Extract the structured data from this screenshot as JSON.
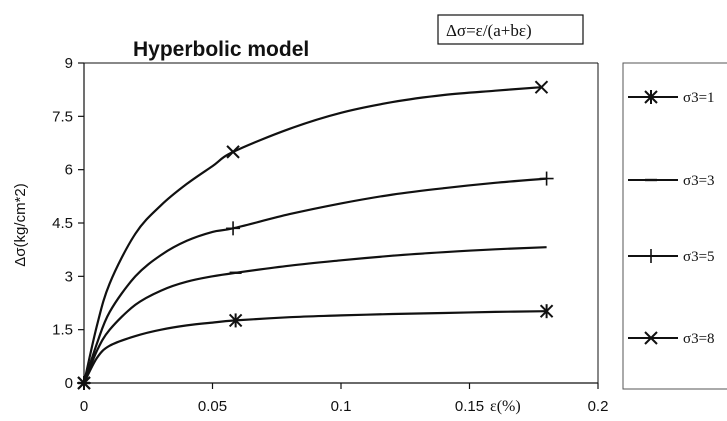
{
  "chart_data": {
    "type": "line",
    "title": "Hyperbolic model",
    "formula": "Δσ=ε/(a+bε)",
    "xlabel": "ε(%)",
    "ylabel": "Δσ(kg/cm*2)",
    "xlim": [
      0,
      0.2
    ],
    "ylim": [
      0,
      9
    ],
    "xticks": [
      "0",
      "0.05",
      "0.1",
      "0.15",
      "0.2"
    ],
    "yticks": [
      "0",
      "1.5",
      "3",
      "4.5",
      "6",
      "7.5",
      "9"
    ],
    "grid": false,
    "legend_position": "right",
    "series": [
      {
        "name": "σ3=1",
        "marker": "asterisk",
        "x": [
          0,
          0.005,
          0.01,
          0.02,
          0.03,
          0.04,
          0.05,
          0.059,
          0.08,
          0.1,
          0.12,
          0.14,
          0.16,
          0.18
        ],
        "y": [
          0,
          0.7,
          1.05,
          1.32,
          1.5,
          1.62,
          1.7,
          1.76,
          1.85,
          1.9,
          1.94,
          1.97,
          2.0,
          2.02
        ],
        "markers_at": [
          [
            0,
            0
          ],
          [
            0.059,
            1.76
          ],
          [
            0.18,
            2.02
          ]
        ]
      },
      {
        "name": "σ3=3",
        "marker": "dash",
        "x": [
          0,
          0.005,
          0.01,
          0.02,
          0.03,
          0.04,
          0.05,
          0.059,
          0.08,
          0.1,
          0.12,
          0.14,
          0.16,
          0.18
        ],
        "y": [
          0,
          0.9,
          1.5,
          2.2,
          2.6,
          2.85,
          3.0,
          3.1,
          3.3,
          3.45,
          3.58,
          3.68,
          3.76,
          3.82
        ],
        "markers_at": [
          [
            0,
            0
          ],
          [
            0.059,
            3.1
          ]
        ]
      },
      {
        "name": "σ3=5",
        "marker": "plus",
        "x": [
          0,
          0.005,
          0.01,
          0.02,
          0.03,
          0.04,
          0.05,
          0.058,
          0.08,
          0.1,
          0.12,
          0.14,
          0.16,
          0.18
        ],
        "y": [
          0,
          1.1,
          2.0,
          3.0,
          3.6,
          4.0,
          4.25,
          4.35,
          4.75,
          5.05,
          5.3,
          5.48,
          5.63,
          5.75
        ],
        "markers_at": [
          [
            0,
            0
          ],
          [
            0.058,
            4.35
          ],
          [
            0.18,
            5.75
          ]
        ]
      },
      {
        "name": "σ3=8",
        "marker": "x",
        "x": [
          0,
          0.005,
          0.01,
          0.02,
          0.03,
          0.04,
          0.05,
          0.058,
          0.08,
          0.1,
          0.12,
          0.14,
          0.16,
          0.178
        ],
        "y": [
          0,
          1.6,
          2.8,
          4.2,
          5.0,
          5.6,
          6.1,
          6.5,
          7.15,
          7.6,
          7.9,
          8.1,
          8.22,
          8.32
        ],
        "markers_at": [
          [
            0,
            0
          ],
          [
            0.058,
            6.5
          ],
          [
            0.178,
            8.32
          ]
        ]
      }
    ]
  }
}
